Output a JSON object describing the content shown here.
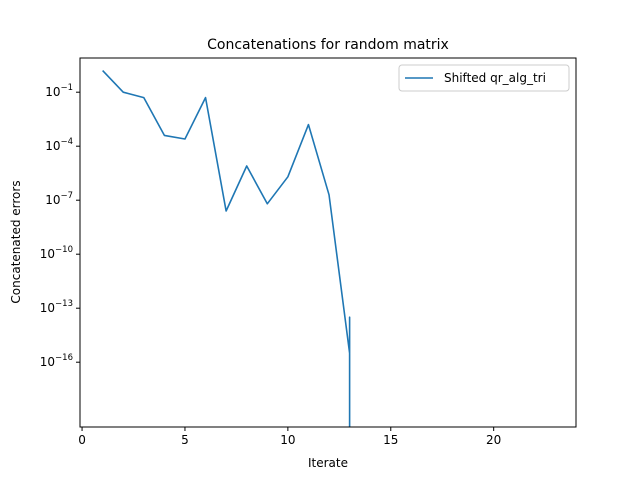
{
  "chart_data": {
    "type": "line",
    "title": "Concatenations for random matrix",
    "xlabel": "Iterate",
    "ylabel": "Concatenated errors",
    "xscale": "linear",
    "yscale": "log",
    "xlim": [
      -0.1,
      24
    ],
    "ylim_log10": [
      -19.6,
      0.9
    ],
    "xticks": [
      0,
      5,
      10,
      15,
      20
    ],
    "xtick_labels": [
      "0",
      "5",
      "10",
      "15",
      "20"
    ],
    "yticks_log10": [
      -1,
      -4,
      -7,
      -10,
      -13,
      -16
    ],
    "ytick_labels": [
      {
        "base": "10",
        "exp": "−1"
      },
      {
        "base": "10",
        "exp": "−4"
      },
      {
        "base": "10",
        "exp": "−7"
      },
      {
        "base": "10",
        "exp": "−10"
      },
      {
        "base": "10",
        "exp": "−13"
      },
      {
        "base": "10",
        "exp": "−16"
      }
    ],
    "grid": false,
    "legend_position": "upper right",
    "series": [
      {
        "name": "Shifted qr_alg_tri",
        "color": "#1f77b4",
        "x": [
          1,
          2,
          3,
          4,
          5,
          6,
          7,
          8,
          9,
          10,
          11,
          12,
          13,
          13
        ],
        "log10_y": [
          0.2,
          -1.0,
          -1.3,
          -3.4,
          -3.6,
          -1.3,
          -7.6,
          -5.1,
          -7.2,
          -5.7,
          -2.8,
          -6.7,
          -15.5,
          -13.5
        ]
      }
    ]
  }
}
